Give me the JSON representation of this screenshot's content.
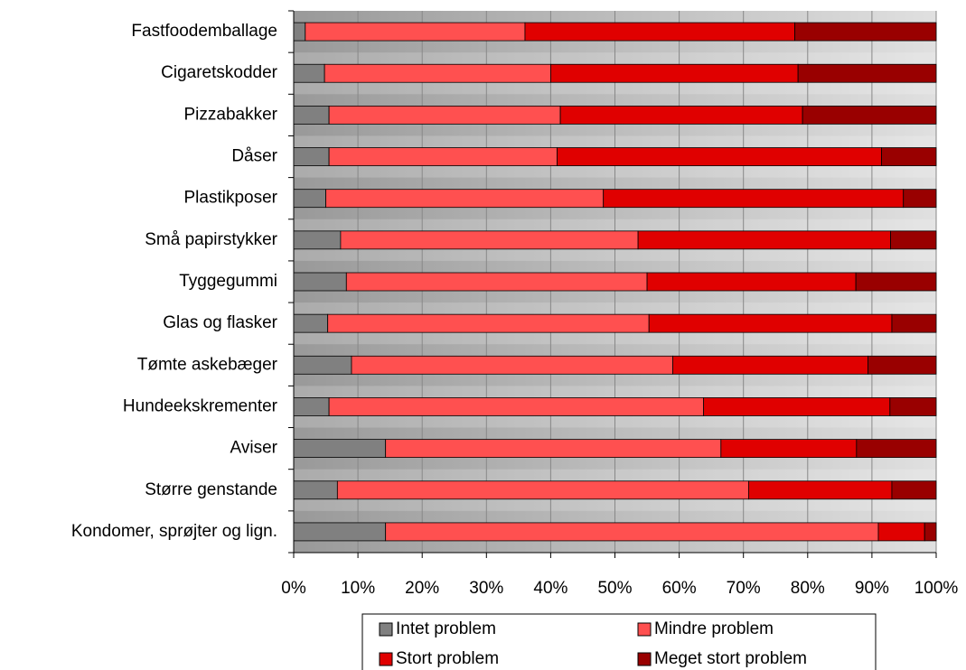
{
  "chart_data": {
    "type": "stacked-barh",
    "categories": [
      "Fastfoodemballage",
      "Cigaretskodder",
      "Pizzabakker",
      "Dåser",
      "Plastikposer",
      "Små papirstykker",
      "Tyggegummi",
      "Glas og flasker",
      "Tømte askebæger",
      "Hundeekskrementer",
      "Aviser",
      "Større genstande",
      "Kondomer, sprøjter og lign."
    ],
    "series": [
      {
        "name": "Intet problem",
        "color": "#808080",
        "values": [
          1.8,
          4.8,
          5.5,
          5.5,
          5,
          7.3,
          8.2,
          5.3,
          9,
          5.5,
          14.3,
          6.8,
          14.3
        ]
      },
      {
        "name": "Mindre problem",
        "color": "#ff5050",
        "values": [
          34.2,
          35.2,
          36,
          35.5,
          43.2,
          46.3,
          46.8,
          50,
          50,
          58.3,
          52.2,
          64,
          76.7
        ]
      },
      {
        "name": "Stort problem",
        "color": "#e00000",
        "values": [
          42,
          38.5,
          37.7,
          50.5,
          46.7,
          39.3,
          32.5,
          37.8,
          30.4,
          29,
          21.1,
          22.3,
          7.2
        ]
      },
      {
        "name": "Meget stort problem",
        "color": "#990000",
        "values": [
          22,
          21.5,
          20.8,
          8.5,
          5.1,
          7.1,
          12.5,
          6.9,
          10.6,
          7.2,
          12.4,
          6.9,
          1.8
        ]
      }
    ],
    "xlim": [
      0,
      100
    ],
    "xticks": [
      {
        "value": 0,
        "label": "0%"
      },
      {
        "value": 10,
        "label": "10%"
      },
      {
        "value": 20,
        "label": "20%"
      },
      {
        "value": 30,
        "label": "30%"
      },
      {
        "value": 40,
        "label": "40%"
      },
      {
        "value": 50,
        "label": "50%"
      },
      {
        "value": 60,
        "label": "60%"
      },
      {
        "value": 70,
        "label": "70%"
      },
      {
        "value": 80,
        "label": "80%"
      },
      {
        "value": 90,
        "label": "90%"
      },
      {
        "value": 100,
        "label": "100%"
      }
    ],
    "grid": true
  }
}
